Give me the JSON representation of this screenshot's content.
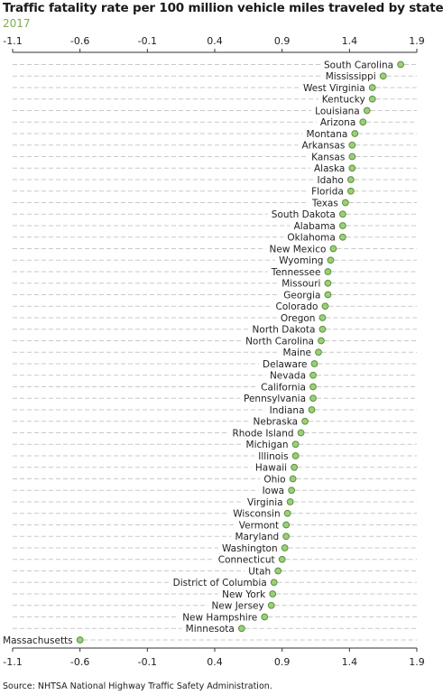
{
  "chart_data": {
    "type": "scatter",
    "title": "Traffic fatality rate per 100 million vehicle miles traveled by state",
    "subtitle": "2017",
    "source": "Source: NHTSA National Highway Traffic Safety Administration.",
    "xlim": [
      -1.1,
      1.9
    ],
    "xticks": [
      "-1.1",
      "-0.6",
      "-0.1",
      "0.4",
      "0.9",
      "1.4",
      "1.9"
    ],
    "grid": true,
    "marker_color": "#9bcf7a",
    "marker_edge_color": "#5e8f3e",
    "categories": [
      "South Carolina",
      "Mississippi",
      "West Virginia",
      "Kentucky",
      "Louisiana",
      "Arizona",
      "Montana",
      "Arkansas",
      "Kansas",
      "Alaska",
      "Idaho",
      "Florida",
      "Texas",
      "South Dakota",
      "Alabama",
      "Oklahoma",
      "New Mexico",
      "Wyoming",
      "Tennessee",
      "Missouri",
      "Georgia",
      "Colorado",
      "Oregon",
      "North Dakota",
      "North Carolina",
      "Maine",
      "Delaware",
      "Nevada",
      "California",
      "Pennsylvania",
      "Indiana",
      "Nebraska",
      "Rhode Island",
      "Michigan",
      "Illinois",
      "Hawaii",
      "Ohio",
      "Iowa",
      "Virginia",
      "Wisconsin",
      "Vermont",
      "Maryland",
      "Washington",
      "Connecticut",
      "Utah",
      "District of Columbia",
      "New York",
      "New Jersey",
      "New Hampshire",
      "Minnesota",
      "Massachusetts"
    ],
    "values": [
      1.78,
      1.65,
      1.57,
      1.57,
      1.53,
      1.5,
      1.44,
      1.42,
      1.42,
      1.42,
      1.41,
      1.41,
      1.37,
      1.35,
      1.35,
      1.35,
      1.28,
      1.26,
      1.24,
      1.24,
      1.24,
      1.22,
      1.2,
      1.2,
      1.19,
      1.17,
      1.14,
      1.13,
      1.13,
      1.13,
      1.12,
      1.07,
      1.04,
      1.0,
      1.0,
      0.99,
      0.98,
      0.97,
      0.96,
      0.94,
      0.93,
      0.93,
      0.92,
      0.9,
      0.87,
      0.84,
      0.83,
      0.82,
      0.77,
      0.6,
      -0.6
    ]
  }
}
